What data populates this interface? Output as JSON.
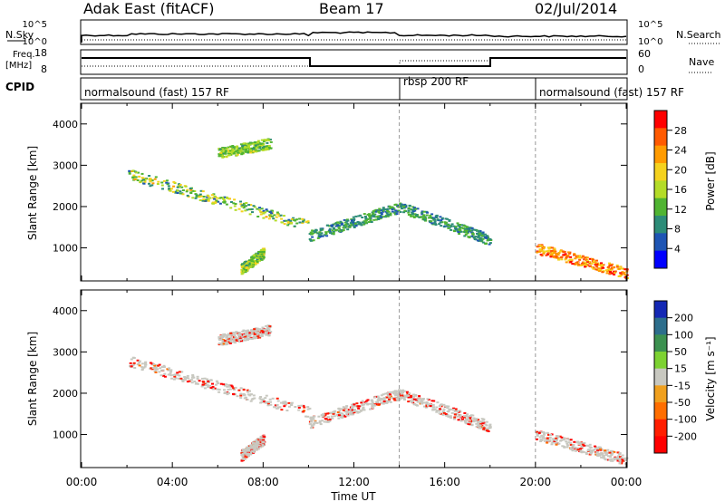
{
  "header": {
    "station": "Adak East (fitACF)",
    "beam": "Beam 17",
    "date": "02/Jul/2014"
  },
  "strips": {
    "nsky_label": "N.Sky",
    "nsky_ticks": [
      "10^5",
      "10^0"
    ],
    "nsearch_label": "N.Search",
    "nsearch_ticks": [
      "10^5",
      "10^0"
    ],
    "freq_label_top": "Freq.",
    "freq_label_bottom": "[MHz]",
    "freq_ticks": [
      "18",
      "8"
    ],
    "nave_label": "Nave",
    "nave_ticks": [
      "60",
      "0"
    ],
    "cpid_label": "CPID",
    "cpid_segments": [
      {
        "label": "normalsound (fast) 157 RF",
        "start_hour": 0,
        "end_hour": 14
      },
      {
        "label": "rbsp 200 RF",
        "start_hour": 14,
        "end_hour": 20
      },
      {
        "label": "normalsound (fast) 157 RF",
        "start_hour": 20,
        "end_hour": 24
      }
    ]
  },
  "power_colorbar": {
    "label": "Power [dB]",
    "ticks": [
      "28",
      "24",
      "20",
      "16",
      "12",
      "8",
      "4"
    ],
    "colors": [
      "#ff0000",
      "#ff5a00",
      "#ff9b00",
      "#f5d21e",
      "#b4dc28",
      "#50b432",
      "#2d8c78",
      "#1e55b4",
      "#0000ff"
    ]
  },
  "velocity_colorbar": {
    "label": "Velocity [m s⁻¹]",
    "ticks": [
      "200",
      "100",
      "50",
      "15",
      "-15",
      "-50",
      "-100",
      "-200"
    ],
    "colors": [
      "#1428b4",
      "#2d6e8c",
      "#3c9150",
      "#7dd232",
      "#c8c8c0",
      "#f0a01e",
      "#ff6e00",
      "#ff1e00",
      "#ff0000"
    ]
  },
  "chart_data": [
    {
      "type": "heatmap",
      "title": "",
      "ylabel": "Slant Range [km]",
      "xlabel": "",
      "ylim": [
        200,
        4500
      ],
      "xlim_hours": [
        0,
        24
      ],
      "yticks": [
        1000,
        2000,
        3000,
        4000
      ],
      "color_quantity": "Power [dB]",
      "features": [
        {
          "description_values": "main band",
          "hours": [
            2,
            10
          ],
          "range_km": [
            2800,
            1550
          ],
          "power_db": [
            4,
            20
          ]
        },
        {
          "hours": [
            10,
            14
          ],
          "range_km": [
            1300,
            2000
          ],
          "power_db": [
            4,
            12
          ]
        },
        {
          "hours": [
            14,
            18
          ],
          "range_km": [
            2000,
            1200
          ],
          "power_db": [
            4,
            12
          ]
        },
        {
          "hours": [
            20,
            24
          ],
          "range_km": [
            1000,
            400
          ],
          "power_db": [
            16,
            28
          ]
        },
        {
          "hours": [
            6,
            8.3
          ],
          "range_km": [
            3300,
            3550
          ],
          "power_db": [
            8,
            16
          ]
        },
        {
          "hours": [
            7,
            8
          ],
          "range_km": [
            500,
            900
          ],
          "power_db": [
            8,
            18
          ]
        }
      ]
    },
    {
      "type": "heatmap",
      "title": "",
      "ylabel": "Slant Range [km]",
      "xlabel": "Time UT",
      "ylim": [
        200,
        4500
      ],
      "xlim_hours": [
        0,
        24
      ],
      "xticks": [
        "00:00",
        "04:00",
        "08:00",
        "12:00",
        "16:00",
        "20:00",
        "00:00"
      ],
      "yticks": [
        1000,
        2000,
        3000,
        4000
      ],
      "color_quantity": "Velocity [m s-1]"
    }
  ]
}
